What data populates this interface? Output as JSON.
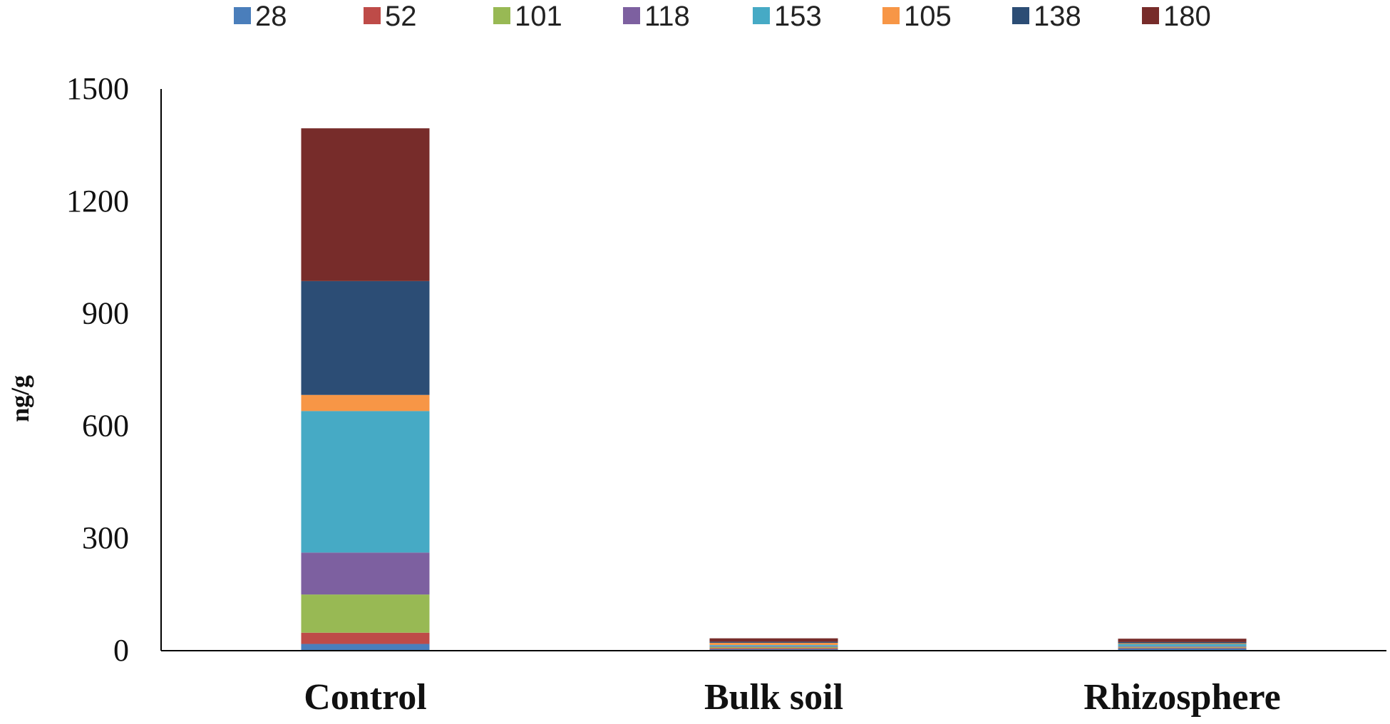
{
  "chart_data": {
    "type": "bar",
    "stacked": true,
    "categories": [
      "Control",
      "Bulk soil",
      "Rhizosphere"
    ],
    "series": [
      {
        "name": "28",
        "color": "#4a7ebb",
        "values": [
          18,
          4,
          6
        ]
      },
      {
        "name": "52",
        "color": "#be4b48",
        "values": [
          30,
          3,
          2
        ]
      },
      {
        "name": "101",
        "color": "#98b954",
        "values": [
          102,
          3,
          2
        ]
      },
      {
        "name": "118",
        "color": "#7d60a0",
        "values": [
          112,
          2,
          2
        ]
      },
      {
        "name": "153",
        "color": "#46aac5",
        "values": [
          378,
          3,
          6
        ]
      },
      {
        "name": "105",
        "color": "#f79646",
        "values": [
          43,
          6,
          2
        ]
      },
      {
        "name": "138",
        "color": "#2c4d75",
        "values": [
          304,
          3,
          3
        ]
      },
      {
        "name": "180",
        "color": "#772c2a",
        "values": [
          408,
          9,
          9
        ]
      }
    ],
    "title": "",
    "xlabel": "",
    "ylabel": "ng/g",
    "ylim": [
      0,
      1500
    ],
    "yticks": [
      0,
      300,
      600,
      900,
      1200,
      1500
    ],
    "grid": false,
    "legend_position": "top"
  }
}
